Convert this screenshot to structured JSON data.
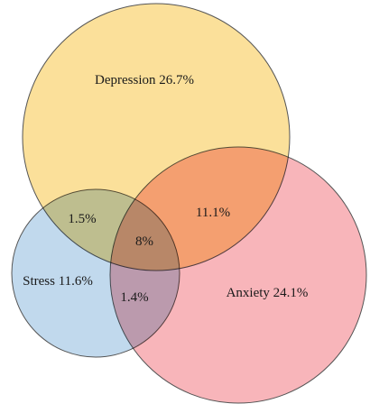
{
  "diagram": {
    "type": "venn",
    "sets": [
      {
        "id": "depression",
        "name": "Depression",
        "value": "26.7%",
        "color": "#FADB88"
      },
      {
        "id": "anxiety",
        "name": "Anxiety",
        "value": "24.1%",
        "color": "#F7A8AE"
      },
      {
        "id": "stress",
        "name": "Stress",
        "value": "11.6%",
        "color": "#B6D2EA"
      }
    ],
    "labels": {
      "depression": "Depression  26.7%",
      "anxiety": "Anxiety 24.1%",
      "stress": "Stress 11.6%",
      "depression_stress": "1.5%",
      "depression_anxiety": "11.1%",
      "all_three": "8%",
      "stress_anxiety": "1.4%"
    },
    "outline_color": "#555555"
  }
}
